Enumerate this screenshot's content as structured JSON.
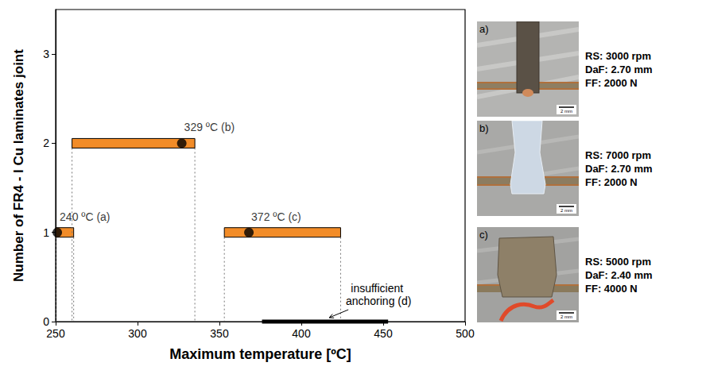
{
  "chart_data": {
    "type": "range",
    "x_label": "Maximum temperature [ºC]",
    "y_label": "Number of FR4 - I Cu laminates joint",
    "xlim": [
      250,
      500
    ],
    "xticks": [
      250,
      300,
      350,
      400,
      450,
      500
    ],
    "ylim": [
      0,
      3.5
    ],
    "yticks": [
      0,
      1,
      2,
      3
    ],
    "ranges": [
      {
        "type": "bar",
        "y": 1,
        "start": 250,
        "end": 261,
        "color": "#f28c28",
        "marker": "circle",
        "marker_x": 251,
        "label": "240 ºC (a)",
        "line_style": "dotted"
      },
      {
        "type": "bar",
        "y": 2,
        "start": 260,
        "end": 335,
        "color": "#f28c28",
        "marker": "circle",
        "marker_x": 327,
        "label": "329 ºC (b)",
        "line_style": "dotted"
      },
      {
        "type": "bar",
        "y": 1,
        "start": 353,
        "end": 424,
        "color": "#f28c28",
        "marker": "circle",
        "marker_x": 368,
        "label": "372 ºC (c)",
        "line_style": "dotted"
      },
      {
        "type": "line",
        "y": 0,
        "start": 376,
        "end": 453,
        "color": "#000000",
        "label": "insufficient anchoring (d)",
        "line_style": "solid"
      }
    ]
  },
  "panels": [
    {
      "letter": "a)",
      "lines": [
        "RS: 3000 rpm",
        "DaF: 2.70 mm",
        "FF: 2000 N"
      ],
      "scale_bar": "2 mm"
    },
    {
      "letter": "b)",
      "lines": [
        "RS: 7000 rpm",
        "DaF: 2.70 mm",
        "FF: 2000 N"
      ],
      "scale_bar": "2 mm"
    },
    {
      "letter": "c)",
      "lines": [
        "RS: 5000 rpm",
        "DaF: 2.40 mm",
        "FF: 4000 N"
      ],
      "scale_bar": "2 mm"
    }
  ]
}
